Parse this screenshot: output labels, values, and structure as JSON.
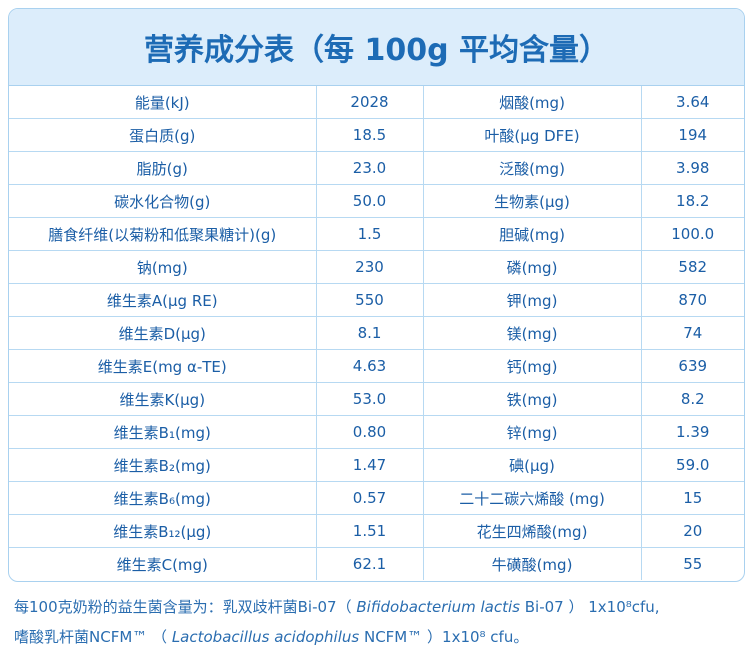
{
  "header": {
    "title": "营养成分表（每 100g 平均含量）"
  },
  "table": {
    "rows": [
      [
        "能量(kJ)",
        "2028",
        "烟酸(mg)",
        "3.64"
      ],
      [
        "蛋白质(g)",
        "18.5",
        "叶酸(μg DFE)",
        "194"
      ],
      [
        "脂肪(g)",
        "23.0",
        "泛酸(mg)",
        "3.98"
      ],
      [
        "碳水化合物(g)",
        "50.0",
        "生物素(μg)",
        "18.2"
      ],
      [
        "膳食纤维(以菊粉和低聚果糖计)(g)",
        "1.5",
        "胆碱(mg)",
        "100.0"
      ],
      [
        "钠(mg)",
        "230",
        "磷(mg)",
        "582"
      ],
      [
        "维生素A(μg RE)",
        "550",
        "钾(mg)",
        "870"
      ],
      [
        "维生素D(μg)",
        "8.1",
        "镁(mg)",
        "74"
      ],
      [
        "维生素E(mg α-TE)",
        "4.63",
        "钙(mg)",
        "639"
      ],
      [
        "维生素K(μg)",
        "53.0",
        "铁(mg)",
        "8.2"
      ],
      [
        "维生素B₁(mg)",
        "0.80",
        "锌(mg)",
        "1.39"
      ],
      [
        "维生素B₂(mg)",
        "1.47",
        "碘(μg)",
        "59.0"
      ],
      [
        "维生素B₆(mg)",
        "0.57",
        "二十二碳六烯酸 (mg)",
        "15"
      ],
      [
        "维生素B₁₂(μg)",
        "1.51",
        "花生四烯酸(mg)",
        "20"
      ],
      [
        "维生素C(mg)",
        "62.1",
        "牛磺酸(mg)",
        "55"
      ]
    ]
  },
  "footnote": {
    "lines": [
      [
        "每100克奶粉的益生菌含量为：乳双歧杆菌Bi-07（ ",
        "Bifidobacterium lactis",
        " Bi-07 ） 1x10⁸cfu,"
      ],
      [
        "嗜酸乳杆菌NCFM™ （ ",
        "Lactobacillus acidophilus",
        " NCFM™ ）1x10⁸ cfu。"
      ]
    ]
  }
}
